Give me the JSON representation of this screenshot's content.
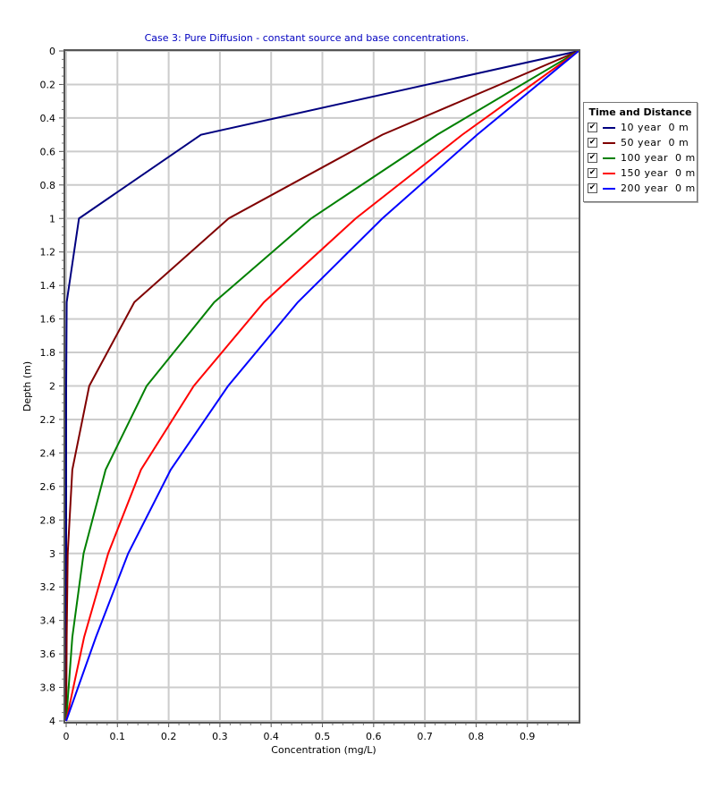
{
  "chart_data": {
    "type": "line",
    "title": "Case 3: Pure Diffusion - constant source and base concentrations.",
    "xlabel": "Concentration (mg/L)",
    "ylabel": "Depth (m)",
    "xlim": [
      0,
      1
    ],
    "ylim": [
      0,
      4
    ],
    "y_inverted": true,
    "grid": true,
    "x_ticks": [
      "0",
      "0.1",
      "0.2",
      "0.3",
      "0.4",
      "0.5",
      "0.6",
      "0.7",
      "0.8",
      "0.9"
    ],
    "y_ticks": [
      "0",
      "0.2",
      "0.4",
      "0.6",
      "0.8",
      "1",
      "1.2",
      "1.4",
      "1.6",
      "1.8",
      "2",
      "2.2",
      "2.4",
      "2.6",
      "2.8",
      "3",
      "3.2",
      "3.4",
      "3.6",
      "3.8",
      "4"
    ],
    "legend_title": "Time and Distance",
    "legend_position": "right",
    "depths": [
      0,
      0.5,
      1,
      1.5,
      2,
      2.5,
      3,
      3.5,
      4
    ],
    "series": [
      {
        "name": "10 year  0 m",
        "color": "#000080",
        "checked": true,
        "values": [
          1,
          0.263,
          0.025,
          0.001,
          0,
          0,
          0,
          0,
          0
        ]
      },
      {
        "name": "50 year  0 m",
        "color": "#800000",
        "checked": true,
        "values": [
          1,
          0.617,
          0.317,
          0.133,
          0.045,
          0.012,
          0.003,
          0.001,
          0
        ]
      },
      {
        "name": "100 year  0 m",
        "color": "#008000",
        "checked": true,
        "values": [
          1,
          0.724,
          0.478,
          0.289,
          0.157,
          0.077,
          0.034,
          0.012,
          0
        ]
      },
      {
        "name": "150 year  0 m",
        "color": "#ff0000",
        "checked": true,
        "values": [
          1,
          0.773,
          0.565,
          0.386,
          0.249,
          0.146,
          0.082,
          0.035,
          0
        ]
      },
      {
        "name": "200 year  0 m",
        "color": "#0000ff",
        "checked": true,
        "values": [
          1,
          0.802,
          0.617,
          0.452,
          0.316,
          0.204,
          0.121,
          0.058,
          0
        ]
      }
    ]
  }
}
